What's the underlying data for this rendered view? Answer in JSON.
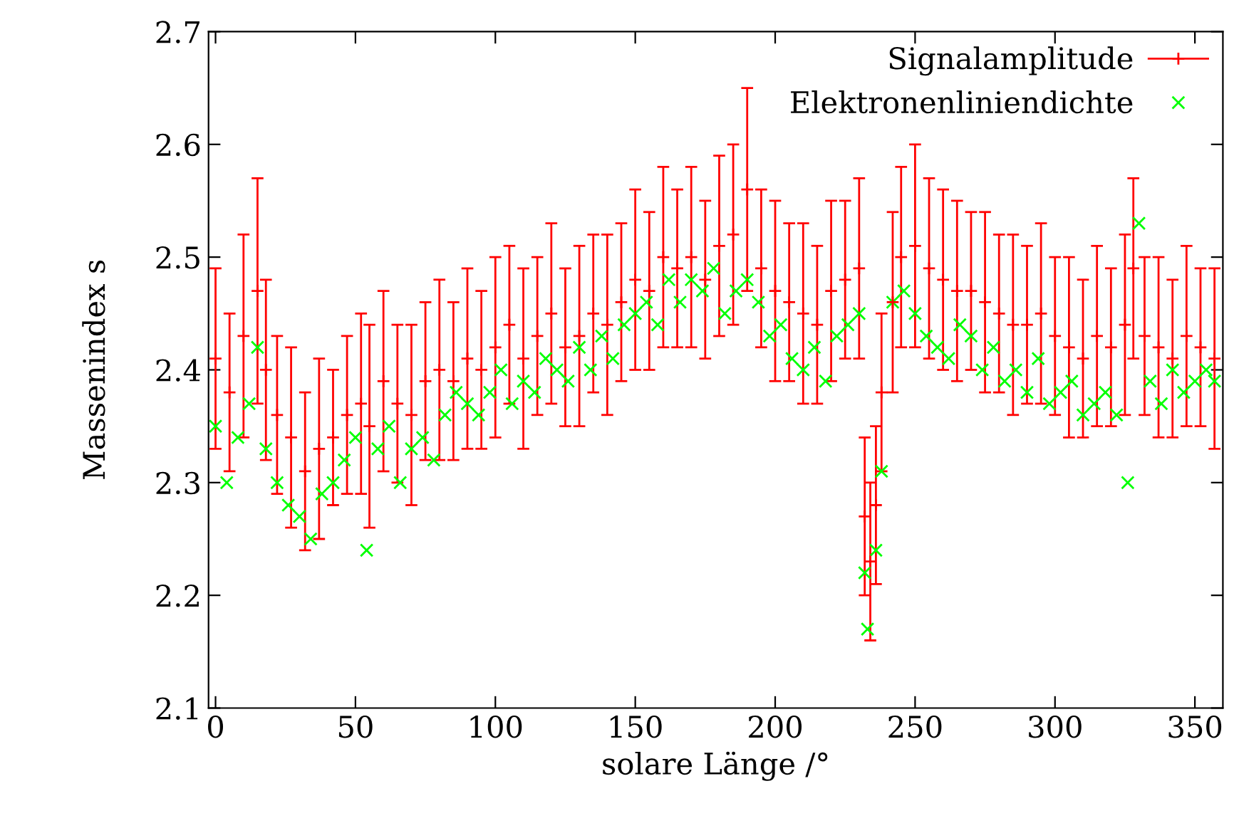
{
  "chart_data": {
    "type": "scatter",
    "xlabel": "solare Länge /°",
    "ylabel": "Massenindex s",
    "xlim": [
      -2.5,
      360
    ],
    "ylim": [
      2.1,
      2.7
    ],
    "xticks": [
      0,
      50,
      100,
      150,
      200,
      250,
      300,
      350
    ],
    "yticks": [
      2.1,
      2.2,
      2.3,
      2.4,
      2.5,
      2.6,
      2.7
    ],
    "grid": false,
    "legend": "top right",
    "series": [
      {
        "name": "Signalamplitude",
        "color": "#ff0000",
        "marker": "cross",
        "x": [
          0,
          5,
          10,
          15,
          18,
          22,
          27,
          32,
          37,
          42,
          47,
          52,
          55,
          60,
          65,
          70,
          75,
          80,
          85,
          90,
          95,
          100,
          105,
          110,
          115,
          120,
          125,
          130,
          135,
          140,
          145,
          150,
          155,
          160,
          165,
          170,
          175,
          180,
          185,
          190,
          195,
          200,
          205,
          210,
          215,
          220,
          225,
          230,
          232,
          234,
          236,
          238,
          242,
          245,
          250,
          255,
          260,
          265,
          270,
          275,
          280,
          285,
          290,
          295,
          300,
          305,
          310,
          315,
          320,
          325,
          328,
          332,
          337,
          342,
          347,
          352,
          357
        ],
        "values": [
          2.41,
          2.38,
          2.43,
          2.47,
          2.4,
          2.36,
          2.34,
          2.31,
          2.33,
          2.34,
          2.36,
          2.37,
          2.35,
          2.39,
          2.37,
          2.36,
          2.39,
          2.4,
          2.39,
          2.41,
          2.4,
          2.42,
          2.44,
          2.41,
          2.43,
          2.45,
          2.42,
          2.43,
          2.45,
          2.44,
          2.46,
          2.48,
          2.47,
          2.5,
          2.49,
          2.5,
          2.48,
          2.51,
          2.52,
          2.56,
          2.49,
          2.47,
          2.46,
          2.45,
          2.44,
          2.47,
          2.48,
          2.49,
          2.27,
          2.23,
          2.28,
          2.38,
          2.46,
          2.5,
          2.51,
          2.49,
          2.48,
          2.47,
          2.47,
          2.46,
          2.45,
          2.44,
          2.44,
          2.45,
          2.43,
          2.42,
          2.41,
          2.43,
          2.42,
          2.44,
          2.49,
          2.43,
          2.42,
          2.41,
          2.43,
          2.42,
          2.41
        ],
        "errors": [
          0.08,
          0.07,
          0.09,
          0.1,
          0.08,
          0.07,
          0.08,
          0.07,
          0.08,
          0.06,
          0.07,
          0.08,
          0.09,
          0.08,
          0.07,
          0.08,
          0.07,
          0.08,
          0.07,
          0.08,
          0.07,
          0.08,
          0.07,
          0.08,
          0.07,
          0.08,
          0.07,
          0.08,
          0.07,
          0.08,
          0.07,
          0.08,
          0.07,
          0.08,
          0.07,
          0.08,
          0.07,
          0.08,
          0.08,
          0.09,
          0.07,
          0.08,
          0.07,
          0.08,
          0.07,
          0.08,
          0.07,
          0.08,
          0.07,
          0.07,
          0.07,
          0.07,
          0.08,
          0.08,
          0.09,
          0.08,
          0.08,
          0.08,
          0.07,
          0.08,
          0.07,
          0.08,
          0.07,
          0.08,
          0.07,
          0.08,
          0.07,
          0.08,
          0.07,
          0.08,
          0.08,
          0.07,
          0.08,
          0.07,
          0.08,
          0.07,
          0.08
        ]
      },
      {
        "name": "Elektronenliniendichte",
        "color": "#00ff00",
        "marker": "cross",
        "x": [
          0,
          4,
          8,
          12,
          15,
          18,
          22,
          26,
          30,
          34,
          38,
          42,
          46,
          50,
          54,
          58,
          62,
          66,
          70,
          74,
          78,
          82,
          86,
          90,
          94,
          98,
          102,
          106,
          110,
          114,
          118,
          122,
          126,
          130,
          134,
          138,
          142,
          146,
          150,
          154,
          158,
          162,
          166,
          170,
          174,
          178,
          182,
          186,
          190,
          194,
          198,
          202,
          206,
          210,
          214,
          218,
          222,
          226,
          230,
          232,
          233,
          236,
          238,
          242,
          246,
          250,
          254,
          258,
          262,
          266,
          270,
          274,
          278,
          282,
          286,
          290,
          294,
          298,
          302,
          306,
          310,
          314,
          318,
          322,
          326,
          330,
          334,
          338,
          342,
          346,
          350,
          354,
          357
        ],
        "values": [
          2.35,
          2.3,
          2.34,
          2.37,
          2.42,
          2.33,
          2.3,
          2.28,
          2.27,
          2.25,
          2.29,
          2.3,
          2.32,
          2.34,
          2.24,
          2.33,
          2.35,
          2.3,
          2.33,
          2.34,
          2.32,
          2.36,
          2.38,
          2.37,
          2.36,
          2.38,
          2.4,
          2.37,
          2.39,
          2.38,
          2.41,
          2.4,
          2.39,
          2.42,
          2.4,
          2.43,
          2.41,
          2.44,
          2.45,
          2.46,
          2.44,
          2.48,
          2.46,
          2.48,
          2.47,
          2.49,
          2.45,
          2.47,
          2.48,
          2.46,
          2.43,
          2.44,
          2.41,
          2.4,
          2.42,
          2.39,
          2.43,
          2.44,
          2.45,
          2.22,
          2.17,
          2.24,
          2.31,
          2.46,
          2.47,
          2.45,
          2.43,
          2.42,
          2.41,
          2.44,
          2.43,
          2.4,
          2.42,
          2.39,
          2.4,
          2.38,
          2.41,
          2.37,
          2.38,
          2.39,
          2.36,
          2.37,
          2.38,
          2.36,
          2.3,
          2.53,
          2.39,
          2.37,
          2.4,
          2.38,
          2.39,
          2.4,
          2.39
        ]
      }
    ]
  }
}
